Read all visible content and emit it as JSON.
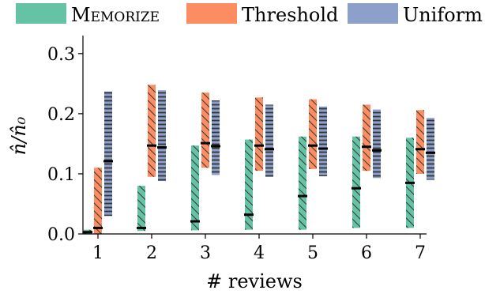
{
  "chart_data": {
    "type": "bar",
    "subtype": "range-bar-with-median",
    "xlabel": "# reviews",
    "ylabel": "n̂/n̂₀",
    "ylim": [
      0,
      0.33
    ],
    "yticks": [
      0.0,
      0.1,
      0.2,
      0.3
    ],
    "ytick_labels": [
      "0.0",
      "0.1",
      "0.2",
      "0.3"
    ],
    "categories": [
      "1",
      "2",
      "3",
      "4",
      "5",
      "6",
      "7"
    ],
    "grid": false,
    "legend_position": "top",
    "series": [
      {
        "name": "Memorize",
        "color": "#66c2a5",
        "hatch": "diagonal",
        "low": [
          0.0,
          0.005,
          0.006,
          0.007,
          0.007,
          0.01,
          0.01
        ],
        "high": [
          0.007,
          0.08,
          0.147,
          0.157,
          0.162,
          0.162,
          0.16
        ],
        "median": [
          0.003,
          0.01,
          0.021,
          0.032,
          0.063,
          0.076,
          0.085
        ]
      },
      {
        "name": "Threshold",
        "color": "#fc8d62",
        "hatch": "diagonal",
        "low": [
          0.0,
          0.095,
          0.11,
          0.105,
          0.108,
          0.105,
          0.1
        ],
        "high": [
          0.11,
          0.248,
          0.235,
          0.227,
          0.224,
          0.215,
          0.206
        ],
        "median": [
          0.01,
          0.147,
          0.151,
          0.147,
          0.147,
          0.145,
          0.141
        ]
      },
      {
        "name": "Uniform",
        "color": "#8da0cb",
        "hatch": "horizontal",
        "low": [
          0.03,
          0.088,
          0.098,
          0.095,
          0.096,
          0.093,
          0.09
        ],
        "high": [
          0.237,
          0.239,
          0.222,
          0.215,
          0.212,
          0.207,
          0.193
        ],
        "median": [
          0.121,
          0.144,
          0.146,
          0.141,
          0.142,
          0.139,
          0.135
        ]
      }
    ]
  }
}
